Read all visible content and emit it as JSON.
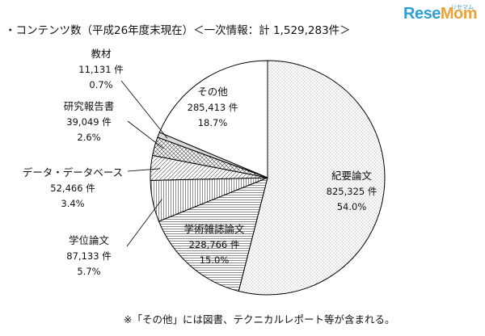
{
  "title": "・コンテンツ数（平成26年度末現在）＜一次情報：計 1,529,283件＞",
  "logo": {
    "text_a": "Rese",
    "text_b": "Mom",
    "kana": "リセマム"
  },
  "footnote": "※「その他」には図書、テクニカルレポート等が含まれる。",
  "chart_data": {
    "type": "pie",
    "title": "・コンテンツ数（平成26年度末現在）＜一次情報：計 1,529,283件＞",
    "total": 1529283,
    "unit": "件",
    "slices": [
      {
        "label": "紀要論文",
        "value": 825325,
        "value_text": "825,325 件",
        "percent": 54.0,
        "percent_text": "54.0%",
        "pattern": "dots"
      },
      {
        "label": "学術雑誌論文",
        "value": 228766,
        "value_text": "228,766 件",
        "percent": 15.0,
        "percent_text": "15.0%",
        "pattern": "hlines"
      },
      {
        "label": "学位論文",
        "value": 87133,
        "value_text": "87,133 件",
        "percent": 5.7,
        "percent_text": "5.7%",
        "pattern": "vlines"
      },
      {
        "label": "データ・データベース",
        "value": 52466,
        "value_text": "52,466 件",
        "percent": 3.4,
        "percent_text": "3.4%",
        "pattern": "diag"
      },
      {
        "label": "研究報告書",
        "value": 39049,
        "value_text": "39,049 件",
        "percent": 2.6,
        "percent_text": "2.6%",
        "pattern": "cross"
      },
      {
        "label": "教材",
        "value": 11131,
        "value_text": "11,131 件",
        "percent": 0.7,
        "percent_text": "0.7%",
        "pattern": "solid"
      },
      {
        "label": "その他",
        "value": 285413,
        "value_text": "285,413 件",
        "percent": 18.7,
        "percent_text": "18.7%",
        "pattern": "none"
      }
    ]
  }
}
